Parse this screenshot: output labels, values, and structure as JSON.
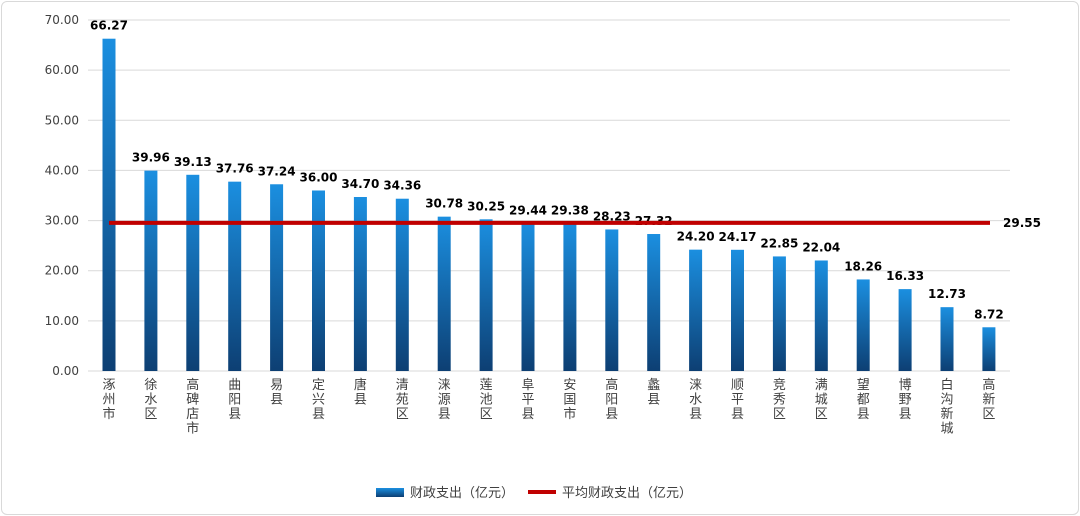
{
  "chart_data": {
    "type": "bar",
    "categories": [
      "涿州市",
      "徐水区",
      "高碑店市",
      "曲阳县",
      "易县",
      "定兴县",
      "唐县",
      "清苑区",
      "涞源县",
      "莲池区",
      "阜平县",
      "安国市",
      "高阳县",
      "蠡县",
      "涞水县",
      "顺平县",
      "竞秀区",
      "满城区",
      "望都县",
      "博野县",
      "白沟新城",
      "高新区"
    ],
    "series": [
      {
        "name": "财政支出（亿元）",
        "type": "bar",
        "values": [
          66.27,
          39.96,
          39.13,
          37.76,
          37.24,
          36.0,
          34.7,
          34.36,
          30.78,
          30.25,
          29.44,
          29.38,
          28.23,
          27.32,
          24.2,
          24.17,
          22.85,
          22.04,
          18.26,
          16.33,
          12.73,
          8.72
        ]
      },
      {
        "name": "平均财政支出（亿元）",
        "type": "line",
        "value": 29.55
      }
    ],
    "value_labels": [
      "66.27",
      "39.96",
      "39.13",
      "37.76",
      "37.24",
      "36.00",
      "34.70",
      "34.36",
      "30.78",
      "30.25",
      "29.44",
      "29.38",
      "28.23",
      "27.32",
      "24.20",
      "24.17",
      "22.85",
      "22.04",
      "18.26",
      "16.33",
      "12.73",
      "8.72"
    ],
    "average_label": "29.55",
    "yticks": [
      "0.00",
      "10.00",
      "20.00",
      "30.00",
      "40.00",
      "50.00",
      "60.00",
      "70.00"
    ],
    "ylim": [
      0,
      70
    ],
    "grid": true,
    "legend": "bottom",
    "colors": {
      "bar_top": "#1b8fe0",
      "bar_bottom": "#0d3f73",
      "line": "#c00000",
      "grid": "#d9d9d9"
    }
  }
}
